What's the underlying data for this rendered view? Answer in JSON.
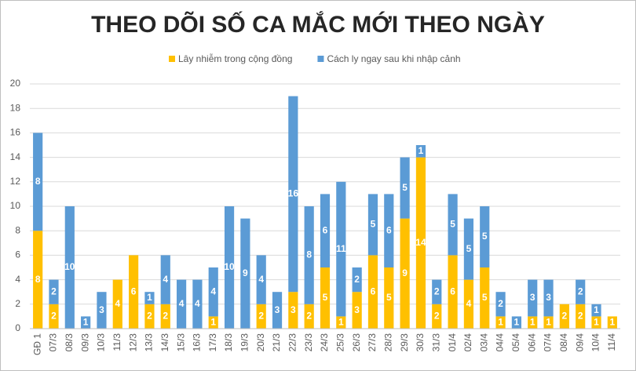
{
  "chart_data": {
    "type": "stacked_bar",
    "title": "THEO DÕI SỐ CA MẮC MỚI THEO NGÀY",
    "categories": [
      "GĐ 1",
      "07/3",
      "08/3",
      "09/3",
      "10/3",
      "11/3",
      "12/3",
      "13/3",
      "14/3",
      "15/3",
      "16/3",
      "17/3",
      "18/3",
      "19/3",
      "20/3",
      "21/3",
      "22/3",
      "23/3",
      "24/3",
      "25/3",
      "26/3",
      "27/3",
      "28/3",
      "29/3",
      "30/3",
      "31/3",
      "01/4",
      "02/4",
      "03/4",
      "04/4",
      "05/4",
      "06/4",
      "07/4",
      "08/4",
      "09/4",
      "10/4",
      "11/4"
    ],
    "series": [
      {
        "name": "Lây nhiễm trong cộng đồng",
        "color": "#FFC000",
        "values": [
          8,
          2,
          0,
          0,
          0,
          4,
          6,
          2,
          2,
          0,
          0,
          1,
          0,
          0,
          2,
          0,
          3,
          2,
          5,
          1,
          3,
          6,
          5,
          9,
          14,
          2,
          6,
          4,
          5,
          1,
          0,
          1,
          1,
          2,
          2,
          1,
          1
        ]
      },
      {
        "name": "Cách ly ngay sau khi nhập cảnh",
        "color": "#5B9BD5",
        "values": [
          8,
          2,
          10,
          1,
          3,
          0,
          0,
          1,
          4,
          4,
          4,
          4,
          10,
          9,
          4,
          3,
          16,
          8,
          6,
          11,
          2,
          5,
          6,
          5,
          1,
          2,
          5,
          5,
          5,
          2,
          1,
          3,
          3,
          0,
          2,
          1,
          0
        ]
      }
    ],
    "ylim": [
      0,
      20
    ],
    "yticks": [
      0,
      2,
      4,
      6,
      8,
      10,
      12,
      14,
      16,
      18,
      20
    ],
    "grid": true
  }
}
